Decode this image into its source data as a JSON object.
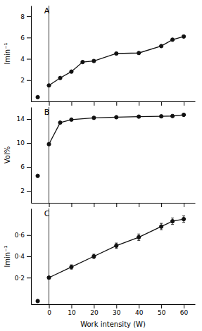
{
  "chart_data": [
    {
      "type": "line",
      "ylabel": "lmin⁻¹",
      "annotations": [
        {
          "text": "A"
        }
      ],
      "series": [
        {
          "type": "scatter",
          "x": [
            -5
          ],
          "values": [
            0.4
          ],
          "color": "#111111",
          "marker": "o"
        },
        {
          "type": "line",
          "x": [
            0,
            5,
            10,
            15,
            20,
            30,
            40,
            50,
            55,
            60
          ],
          "values": [
            1.5,
            2.2,
            2.8,
            3.7,
            3.8,
            4.5,
            4.55,
            5.2,
            5.8,
            6.1
          ],
          "color": "#111111",
          "marker": "o"
        }
      ],
      "vline": {
        "x": 0,
        "color": "#333333"
      },
      "xlim": [
        -8,
        65
      ],
      "xticks": [
        0,
        10,
        20,
        30,
        40,
        50,
        60
      ],
      "ylim": [
        0,
        9
      ],
      "yticks": [
        2,
        4,
        6,
        8
      ],
      "tick_labels": "y",
      "grid": false
    },
    {
      "type": "line",
      "ylabel": "Vol%",
      "annotations": [
        {
          "text": "B"
        }
      ],
      "series": [
        {
          "type": "scatter",
          "x": [
            -5
          ],
          "values": [
            4.5
          ],
          "color": "#111111",
          "marker": "o"
        },
        {
          "type": "line",
          "x": [
            0,
            5,
            10,
            20,
            30,
            40,
            50,
            55,
            60
          ],
          "values": [
            9.8,
            13.4,
            13.9,
            14.2,
            14.3,
            14.4,
            14.45,
            14.5,
            14.7
          ],
          "color": "#111111",
          "marker": "o"
        }
      ],
      "vline": {
        "x": 0,
        "color": "#333333"
      },
      "xlim": [
        -8,
        65
      ],
      "xticks": [
        0,
        10,
        20,
        30,
        40,
        50,
        60
      ],
      "ylim": [
        0,
        16
      ],
      "yticks": [
        2,
        6,
        10,
        14
      ],
      "tick_labels": "y",
      "grid": false
    },
    {
      "type": "line",
      "ylabel": "lmin⁻¹",
      "xlabel": "Work intensity (W)",
      "annotations": [
        {
          "text": "C"
        }
      ],
      "series": [
        {
          "type": "scatter",
          "x": [
            -5
          ],
          "values": [
            -0.02
          ],
          "color": "#111111",
          "marker": "o"
        },
        {
          "type": "line",
          "x": [
            0,
            10,
            20,
            30,
            40,
            50,
            55,
            60
          ],
          "values": [
            0.2,
            0.3,
            0.4,
            0.5,
            0.58,
            0.68,
            0.73,
            0.75
          ],
          "errors": [
            0.01,
            0.02,
            0.02,
            0.025,
            0.03,
            0.03,
            0.03,
            0.03
          ],
          "color": "#111111",
          "marker": "o"
        }
      ],
      "vline": {
        "x": 0,
        "color": "#333333"
      },
      "xlim": [
        -8,
        65
      ],
      "xticks": [
        0,
        10,
        20,
        30,
        40,
        50,
        60
      ],
      "ylim": [
        -0.05,
        0.85
      ],
      "yticks": [
        {
          "value": 0.2,
          "label": "0·2"
        },
        {
          "value": 0.4,
          "label": "0·4"
        },
        {
          "value": 0.6,
          "label": "0·6"
        }
      ],
      "grid": false
    }
  ]
}
